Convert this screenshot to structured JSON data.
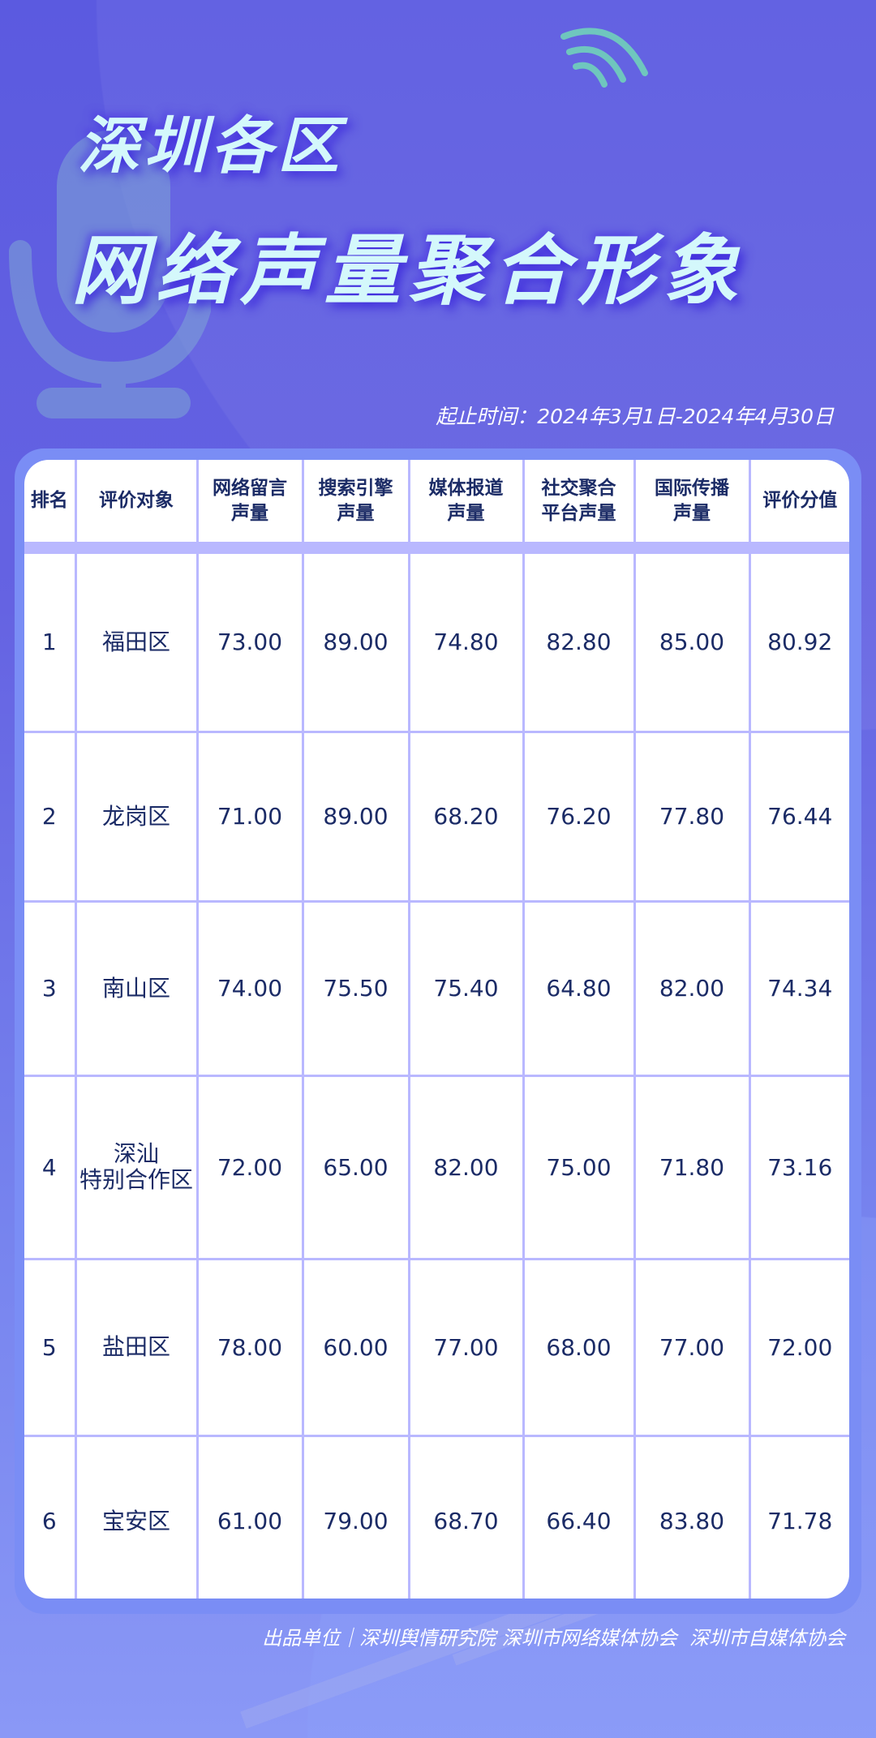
{
  "title_line1": "深圳各区",
  "title_line2": "网络声量聚合形象",
  "date_range": "起止时间：2024年3月1日-2024年4月30日",
  "colors": {
    "title": "#d4f8fb",
    "text": "#1b2b66",
    "grid": "#b9b8ff",
    "background_top": "#5b5ae0",
    "background_bottom": "#8a98f6"
  },
  "icons": [
    "microphone-icon",
    "signal-waves-icon"
  ],
  "table": {
    "headers": [
      [
        "排名"
      ],
      [
        "评价对象"
      ],
      [
        "网络留言",
        "声量"
      ],
      [
        "搜索引擎",
        "声量"
      ],
      [
        "媒体报道",
        "声量"
      ],
      [
        "社交聚合",
        "平台声量"
      ],
      [
        "国际传播",
        "声量"
      ],
      [
        "评价分值"
      ]
    ],
    "rows": [
      [
        "1",
        "福田区",
        "73.00",
        "89.00",
        "74.80",
        "82.80",
        "85.00",
        "80.92"
      ],
      [
        "2",
        "龙岗区",
        "71.00",
        "89.00",
        "68.20",
        "76.20",
        "77.80",
        "76.44"
      ],
      [
        "3",
        "南山区",
        "74.00",
        "75.50",
        "75.40",
        "64.80",
        "82.00",
        "74.34"
      ],
      [
        "4",
        "深汕\n特别合作区",
        "72.00",
        "65.00",
        "82.00",
        "75.00",
        "71.80",
        "73.16"
      ],
      [
        "5",
        "盐田区",
        "78.00",
        "60.00",
        "77.00",
        "68.00",
        "77.00",
        "72.00"
      ],
      [
        "6",
        "宝安区",
        "61.00",
        "79.00",
        "68.70",
        "66.40",
        "83.80",
        "71.78"
      ]
    ]
  },
  "footer": "出品单位｜深圳舆情研究院 深圳市网络媒体协会  深圳市自媒体协会"
}
